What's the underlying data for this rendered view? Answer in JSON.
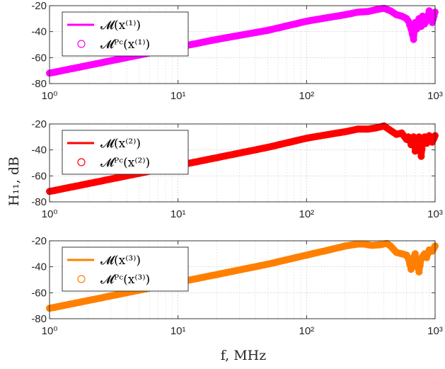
{
  "figure": {
    "ylabel": "H₁₁, dB",
    "xlabel": "f, MHz"
  },
  "chart_data": [
    {
      "type": "line",
      "xscale": "log",
      "xlim": [
        1,
        1000
      ],
      "ylim": [
        -80,
        -20
      ],
      "grid": true,
      "legend_position": "top-left",
      "xticks": [
        "10⁰",
        "10¹",
        "10²",
        "10³"
      ],
      "yticks": [
        "-20",
        "-40",
        "-60",
        "-80"
      ],
      "series": [
        {
          "name": "𝓜(x⁽¹⁾)",
          "style": "line",
          "color": "#ff00ff"
        },
        {
          "name": "𝓜ᴾᶜ(x⁽¹⁾)",
          "style": "circle",
          "color": "#ff00ff"
        }
      ],
      "x": [
        1,
        2,
        5,
        10,
        20,
        50,
        100,
        150,
        200,
        250,
        300,
        350,
        400,
        450,
        500,
        550,
        600,
        620,
        650,
        680,
        700,
        720,
        750,
        780,
        800,
        830,
        860,
        900,
        950,
        1000
      ],
      "y": [
        -72,
        -66,
        -58,
        -52,
        -46,
        -39,
        -32,
        -29,
        -27,
        -25,
        -24.5,
        -23,
        -22,
        -24,
        -27,
        -28,
        -30,
        -32,
        -38,
        -46,
        -33,
        -38,
        -30,
        -36,
        -28,
        -34,
        -31,
        -24,
        -33,
        -25
      ]
    },
    {
      "type": "line",
      "xscale": "log",
      "xlim": [
        1,
        1000
      ],
      "ylim": [
        -80,
        -20
      ],
      "grid": true,
      "legend_position": "top-left",
      "xticks": [
        "10⁰",
        "10¹",
        "10²",
        "10³"
      ],
      "yticks": [
        "-20",
        "-40",
        "-60",
        "-80"
      ],
      "series": [
        {
          "name": "𝓜(x⁽²⁾)",
          "style": "line",
          "color": "#ff0000"
        },
        {
          "name": "𝓜ᴾᶜ(x⁽²⁾)",
          "style": "circle",
          "color": "#ff0000"
        }
      ],
      "x": [
        1,
        2,
        5,
        10,
        20,
        50,
        100,
        150,
        200,
        250,
        300,
        350,
        400,
        450,
        500,
        550,
        600,
        620,
        650,
        680,
        700,
        720,
        750,
        780,
        800,
        830,
        860,
        900,
        950,
        1000
      ],
      "y": [
        -72,
        -66,
        -58,
        -52,
        -46,
        -38,
        -31,
        -28,
        -26,
        -24,
        -24,
        -23,
        -21.5,
        -25,
        -28,
        -27,
        -32,
        -30,
        -36,
        -30,
        -41,
        -34,
        -30,
        -45,
        -34,
        -30,
        -35,
        -29,
        -34,
        -29
      ]
    },
    {
      "type": "line",
      "xscale": "log",
      "xlim": [
        1,
        1000
      ],
      "ylim": [
        -80,
        -20
      ],
      "grid": true,
      "legend_position": "top-left",
      "xticks": [
        "10⁰",
        "10¹",
        "10²",
        "10³"
      ],
      "yticks": [
        "-20",
        "-40",
        "-60",
        "-80"
      ],
      "series": [
        {
          "name": "𝓜(x⁽³⁾)",
          "style": "line",
          "color": "#ff8000"
        },
        {
          "name": "𝓜ᴾᶜ(x⁽³⁾)",
          "style": "circle",
          "color": "#ff8000"
        }
      ],
      "x": [
        1,
        2,
        5,
        10,
        20,
        50,
        100,
        150,
        200,
        250,
        280,
        320,
        380,
        420,
        450,
        500,
        550,
        600,
        620,
        650,
        680,
        700,
        720,
        750,
        780,
        800,
        830,
        860,
        900,
        950,
        1000
      ],
      "y": [
        -72,
        -66,
        -58,
        -52,
        -46,
        -38,
        -31,
        -27,
        -24,
        -22.5,
        -22.5,
        -23.5,
        -23,
        -22,
        -24,
        -29,
        -30,
        -31,
        -34,
        -42,
        -33,
        -30,
        -38,
        -44,
        -34,
        -32,
        -30,
        -33,
        -27,
        -28,
        -24
      ]
    }
  ]
}
